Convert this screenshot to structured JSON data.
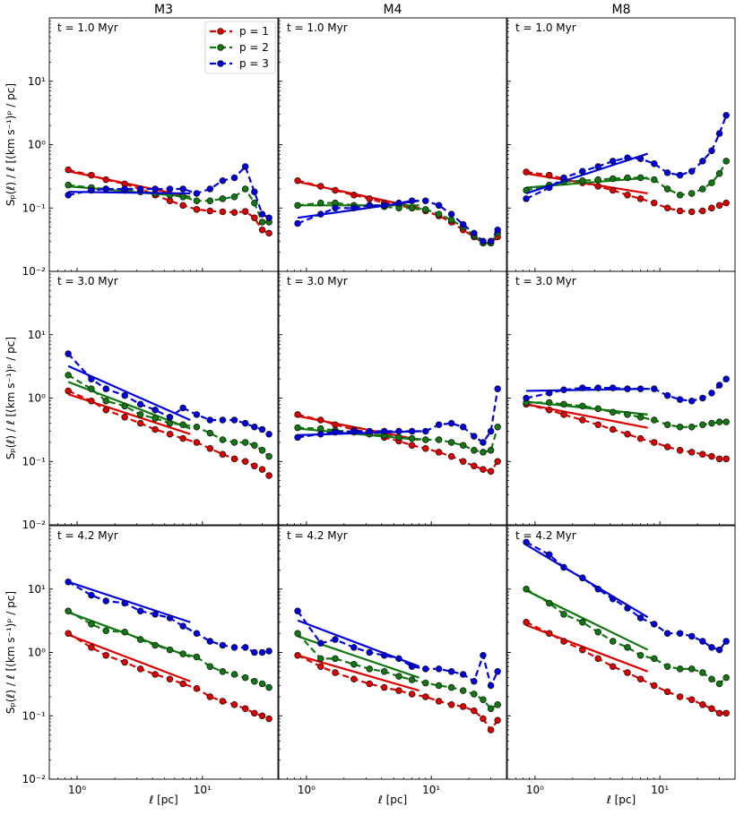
{
  "chart_data": {
    "type": "line",
    "columns": [
      "M3",
      "M4",
      "M8"
    ],
    "rows": [
      "t = 1.0 Myr",
      "t = 3.0 Myr",
      "t = 4.2 Myr"
    ],
    "ylabel": "S_p(ℓ) / ℓ [(km s⁻¹)ᵖ / pc]",
    "xlabel": "ℓ [pc]",
    "xscale": "log",
    "yscale": "log",
    "xlim": [
      0.6,
      40
    ],
    "ylim": [
      0.01,
      100
    ],
    "xticks": [
      {
        "value": 1,
        "label": "10⁰"
      },
      {
        "value": 10,
        "label": "10¹"
      }
    ],
    "yticks": [
      {
        "value": 0.01,
        "label": "10⁻²"
      },
      {
        "value": 0.1,
        "label": "10⁻¹"
      },
      {
        "value": 1,
        "label": "10⁰"
      },
      {
        "value": 10,
        "label": "10¹"
      }
    ],
    "legend": {
      "position": "top-right of first panel",
      "entries": [
        {
          "label": "p = 1",
          "color": "#dd0000"
        },
        {
          "label": "p = 2",
          "color": "#117711"
        },
        {
          "label": "p = 3",
          "color": "#0000dd"
        }
      ]
    },
    "x_points": [
      0.85,
      1.3,
      1.7,
      2.4,
      3.2,
      4.2,
      5.5,
      7.0,
      9.0,
      11.5,
      14.5,
      18.0,
      22.0,
      26.0,
      30.0,
      34.0
    ],
    "fit_x_range": [
      0.85,
      8.0
    ],
    "panels": [
      {
        "col": 0,
        "row": 0,
        "series": [
          {
            "name": "p = 1",
            "values": [
              0.4,
              0.33,
              0.28,
              0.24,
              0.2,
              0.16,
              0.13,
              0.11,
              0.095,
              0.09,
              0.087,
              0.085,
              0.088,
              0.07,
              0.045,
              0.04
            ],
            "fit": [
              0.38,
              0.15
            ]
          },
          {
            "name": "p = 2",
            "values": [
              0.23,
              0.21,
              0.2,
              0.19,
              0.18,
              0.17,
              0.16,
              0.15,
              0.13,
              0.13,
              0.14,
              0.15,
              0.2,
              0.12,
              0.06,
              0.06
            ],
            "fit": [
              0.22,
              0.15
            ]
          },
          {
            "name": "p = 3",
            "values": [
              0.16,
              0.19,
              0.2,
              0.2,
              0.2,
              0.2,
              0.2,
              0.2,
              0.17,
              0.2,
              0.27,
              0.3,
              0.45,
              0.18,
              0.08,
              0.07
            ],
            "fit": [
              0.18,
              0.17
            ]
          }
        ]
      },
      {
        "col": 1,
        "row": 0,
        "series": [
          {
            "name": "p = 1",
            "values": [
              0.27,
              0.22,
              0.19,
              0.16,
              0.14,
              0.12,
              0.11,
              0.1,
              0.09,
              0.075,
              0.06,
              0.045,
              0.035,
              0.028,
              0.028,
              0.035
            ],
            "fit": [
              0.26,
              0.1
            ]
          },
          {
            "name": "p = 2",
            "values": [
              0.11,
              0.12,
              0.12,
              0.11,
              0.11,
              0.105,
              0.1,
              0.1,
              0.095,
              0.08,
              0.065,
              0.05,
              0.037,
              0.028,
              0.028,
              0.04
            ],
            "fit": [
              0.11,
              0.11
            ]
          },
          {
            "name": "p = 3",
            "values": [
              0.057,
              0.08,
              0.1,
              0.1,
              0.11,
              0.11,
              0.12,
              0.13,
              0.13,
              0.11,
              0.08,
              0.055,
              0.04,
              0.03,
              0.03,
              0.045
            ],
            "fit": [
              0.07,
              0.13
            ]
          }
        ]
      },
      {
        "col": 2,
        "row": 0,
        "series": [
          {
            "name": "p = 1",
            "values": [
              0.37,
              0.33,
              0.29,
              0.25,
              0.22,
              0.19,
              0.16,
              0.14,
              0.12,
              0.1,
              0.09,
              0.087,
              0.09,
              0.1,
              0.11,
              0.12
            ],
            "fit": [
              0.35,
              0.17
            ]
          },
          {
            "name": "p = 2",
            "values": [
              0.19,
              0.23,
              0.26,
              0.27,
              0.28,
              0.29,
              0.3,
              0.3,
              0.28,
              0.2,
              0.16,
              0.17,
              0.2,
              0.25,
              0.35,
              0.55
            ],
            "fit": [
              0.21,
              0.3
            ]
          },
          {
            "name": "p = 3",
            "values": [
              0.14,
              0.21,
              0.3,
              0.38,
              0.45,
              0.55,
              0.62,
              0.6,
              0.5,
              0.36,
              0.33,
              0.38,
              0.55,
              0.8,
              1.5,
              2.9
            ],
            "fit": [
              0.17,
              0.72
            ]
          }
        ]
      },
      {
        "col": 0,
        "row": 1,
        "series": [
          {
            "name": "p = 1",
            "values": [
              1.3,
              0.9,
              0.65,
              0.5,
              0.4,
              0.32,
              0.27,
              0.23,
              0.2,
              0.16,
              0.13,
              0.11,
              0.1,
              0.085,
              0.075,
              0.06
            ],
            "fit": [
              1.15,
              0.27
            ]
          },
          {
            "name": "p = 2",
            "values": [
              2.3,
              1.4,
              0.9,
              0.75,
              0.55,
              0.48,
              0.4,
              0.38,
              0.35,
              0.28,
              0.22,
              0.2,
              0.2,
              0.18,
              0.15,
              0.12
            ],
            "fit": [
              1.8,
              0.33
            ]
          },
          {
            "name": "p = 3",
            "values": [
              5.0,
              2.0,
              1.4,
              1.1,
              0.8,
              0.65,
              0.5,
              0.7,
              0.55,
              0.45,
              0.45,
              0.45,
              0.4,
              0.35,
              0.32,
              0.27
            ],
            "fit": [
              3.2,
              0.45
            ]
          }
        ]
      },
      {
        "col": 1,
        "row": 1,
        "series": [
          {
            "name": "p = 1",
            "values": [
              0.55,
              0.45,
              0.38,
              0.32,
              0.28,
              0.24,
              0.21,
              0.18,
              0.16,
              0.14,
              0.12,
              0.1,
              0.085,
              0.075,
              0.07,
              0.1
            ],
            "fit": [
              0.52,
              0.22
            ]
          },
          {
            "name": "p = 2",
            "values": [
              0.34,
              0.33,
              0.31,
              0.29,
              0.27,
              0.26,
              0.24,
              0.23,
              0.22,
              0.22,
              0.2,
              0.18,
              0.15,
              0.14,
              0.15,
              0.35
            ],
            "fit": [
              0.33,
              0.22
            ]
          },
          {
            "name": "p = 3",
            "values": [
              0.24,
              0.27,
              0.29,
              0.3,
              0.3,
              0.3,
              0.3,
              0.3,
              0.3,
              0.38,
              0.4,
              0.35,
              0.25,
              0.2,
              0.3,
              1.4
            ],
            "fit": [
              0.26,
              0.3
            ]
          }
        ]
      },
      {
        "col": 2,
        "row": 1,
        "series": [
          {
            "name": "p = 1",
            "values": [
              0.8,
              0.65,
              0.55,
              0.45,
              0.38,
              0.32,
              0.27,
              0.23,
              0.2,
              0.17,
              0.15,
              0.14,
              0.13,
              0.12,
              0.11,
              0.11
            ],
            "fit": [
              0.8,
              0.34
            ]
          },
          {
            "name": "p = 2",
            "values": [
              0.85,
              0.85,
              0.8,
              0.75,
              0.68,
              0.6,
              0.55,
              0.5,
              0.45,
              0.38,
              0.35,
              0.35,
              0.38,
              0.4,
              0.42,
              0.42
            ],
            "fit": [
              0.88,
              0.55
            ]
          },
          {
            "name": "p = 3",
            "values": [
              1.0,
              1.2,
              1.35,
              1.45,
              1.45,
              1.45,
              1.4,
              1.4,
              1.4,
              1.1,
              0.95,
              0.9,
              1.0,
              1.2,
              1.6,
              2.0
            ],
            "fit": [
              1.3,
              1.4
            ]
          }
        ]
      },
      {
        "col": 0,
        "row": 2,
        "series": [
          {
            "name": "p = 1",
            "values": [
              2.0,
              1.2,
              0.9,
              0.7,
              0.55,
              0.45,
              0.38,
              0.32,
              0.27,
              0.2,
              0.17,
              0.15,
              0.13,
              0.11,
              0.1,
              0.09
            ],
            "fit": [
              1.9,
              0.35
            ]
          },
          {
            "name": "p = 2",
            "values": [
              4.5,
              2.8,
              2.2,
              2.1,
              1.6,
              1.3,
              1.1,
              0.95,
              0.85,
              0.6,
              0.5,
              0.45,
              0.4,
              0.35,
              0.32,
              0.28
            ],
            "fit": [
              4.3,
              0.85
            ]
          },
          {
            "name": "p = 3",
            "values": [
              13,
              8,
              6.5,
              6.0,
              4.5,
              4.0,
              3.5,
              2.6,
              2.0,
              1.5,
              1.3,
              1.2,
              1.2,
              1.0,
              1.0,
              1.05
            ],
            "fit": [
              13,
              3.0
            ]
          }
        ]
      },
      {
        "col": 1,
        "row": 2,
        "series": [
          {
            "name": "p = 1",
            "values": [
              0.9,
              0.6,
              0.48,
              0.38,
              0.32,
              0.28,
              0.25,
              0.22,
              0.2,
              0.17,
              0.15,
              0.14,
              0.12,
              0.09,
              0.06,
              0.085
            ],
            "fit": [
              0.9,
              0.25
            ]
          },
          {
            "name": "p = 2",
            "values": [
              2.0,
              0.8,
              0.8,
              0.65,
              0.55,
              0.5,
              0.42,
              0.37,
              0.33,
              0.3,
              0.28,
              0.25,
              0.22,
              0.18,
              0.13,
              0.15
            ],
            "fit": [
              1.8,
              0.4
            ]
          },
          {
            "name": "p = 3",
            "values": [
              4.5,
              1.4,
              1.6,
              1.2,
              1.0,
              0.9,
              0.8,
              0.6,
              0.55,
              0.55,
              0.5,
              0.45,
              0.35,
              0.9,
              0.3,
              0.5
            ],
            "fit": [
              3.2,
              0.6
            ]
          }
        ]
      },
      {
        "col": 2,
        "row": 2,
        "series": [
          {
            "name": "p = 1",
            "values": [
              3.0,
              2.0,
              1.5,
              1.1,
              0.8,
              0.6,
              0.48,
              0.38,
              0.3,
              0.24,
              0.2,
              0.18,
              0.15,
              0.13,
              0.11,
              0.11
            ],
            "fit": [
              2.7,
              0.5
            ]
          },
          {
            "name": "p = 2",
            "values": [
              10,
              6.0,
              4.0,
              3.0,
              2.1,
              1.5,
              1.2,
              0.9,
              0.8,
              0.6,
              0.55,
              0.55,
              0.48,
              0.38,
              0.32,
              0.4
            ],
            "fit": [
              9.5,
              1.1
            ]
          },
          {
            "name": "p = 3",
            "values": [
              55,
              35,
              22,
              15,
              10,
              7.0,
              5.0,
              3.5,
              2.8,
              2.0,
              2.0,
              1.8,
              1.5,
              1.2,
              1.1,
              1.5
            ],
            "fit": [
              50,
              3.6
            ]
          }
        ]
      }
    ]
  }
}
